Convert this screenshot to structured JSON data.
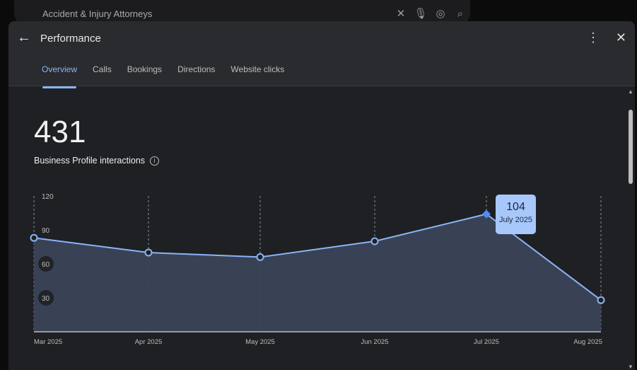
{
  "search": {
    "query": "Accident & Injury Attorneys"
  },
  "header": {
    "title": "Performance",
    "tabs": [
      {
        "label": "Overview",
        "active": true
      },
      {
        "label": "Calls"
      },
      {
        "label": "Bookings"
      },
      {
        "label": "Directions"
      },
      {
        "label": "Website clicks"
      }
    ]
  },
  "summary": {
    "total": "431",
    "label": "Business Profile interactions"
  },
  "tooltip": {
    "value": "104",
    "date": "July 2025"
  },
  "colors": {
    "accent": "#8ab4f8",
    "area": "#3b4557",
    "tooltip": "#a8c7fa"
  },
  "chart_data": {
    "type": "area",
    "categories": [
      "Mar 2025",
      "Apr 2025",
      "May 2025",
      "Jun 2025",
      "Jul 2025",
      "Aug 2025"
    ],
    "values": [
      83,
      70,
      66,
      80,
      104,
      28
    ],
    "yticks": [
      "30",
      "60",
      "90",
      "120"
    ],
    "ylim": [
      0,
      120
    ],
    "highlighted": "Jul 2025"
  }
}
